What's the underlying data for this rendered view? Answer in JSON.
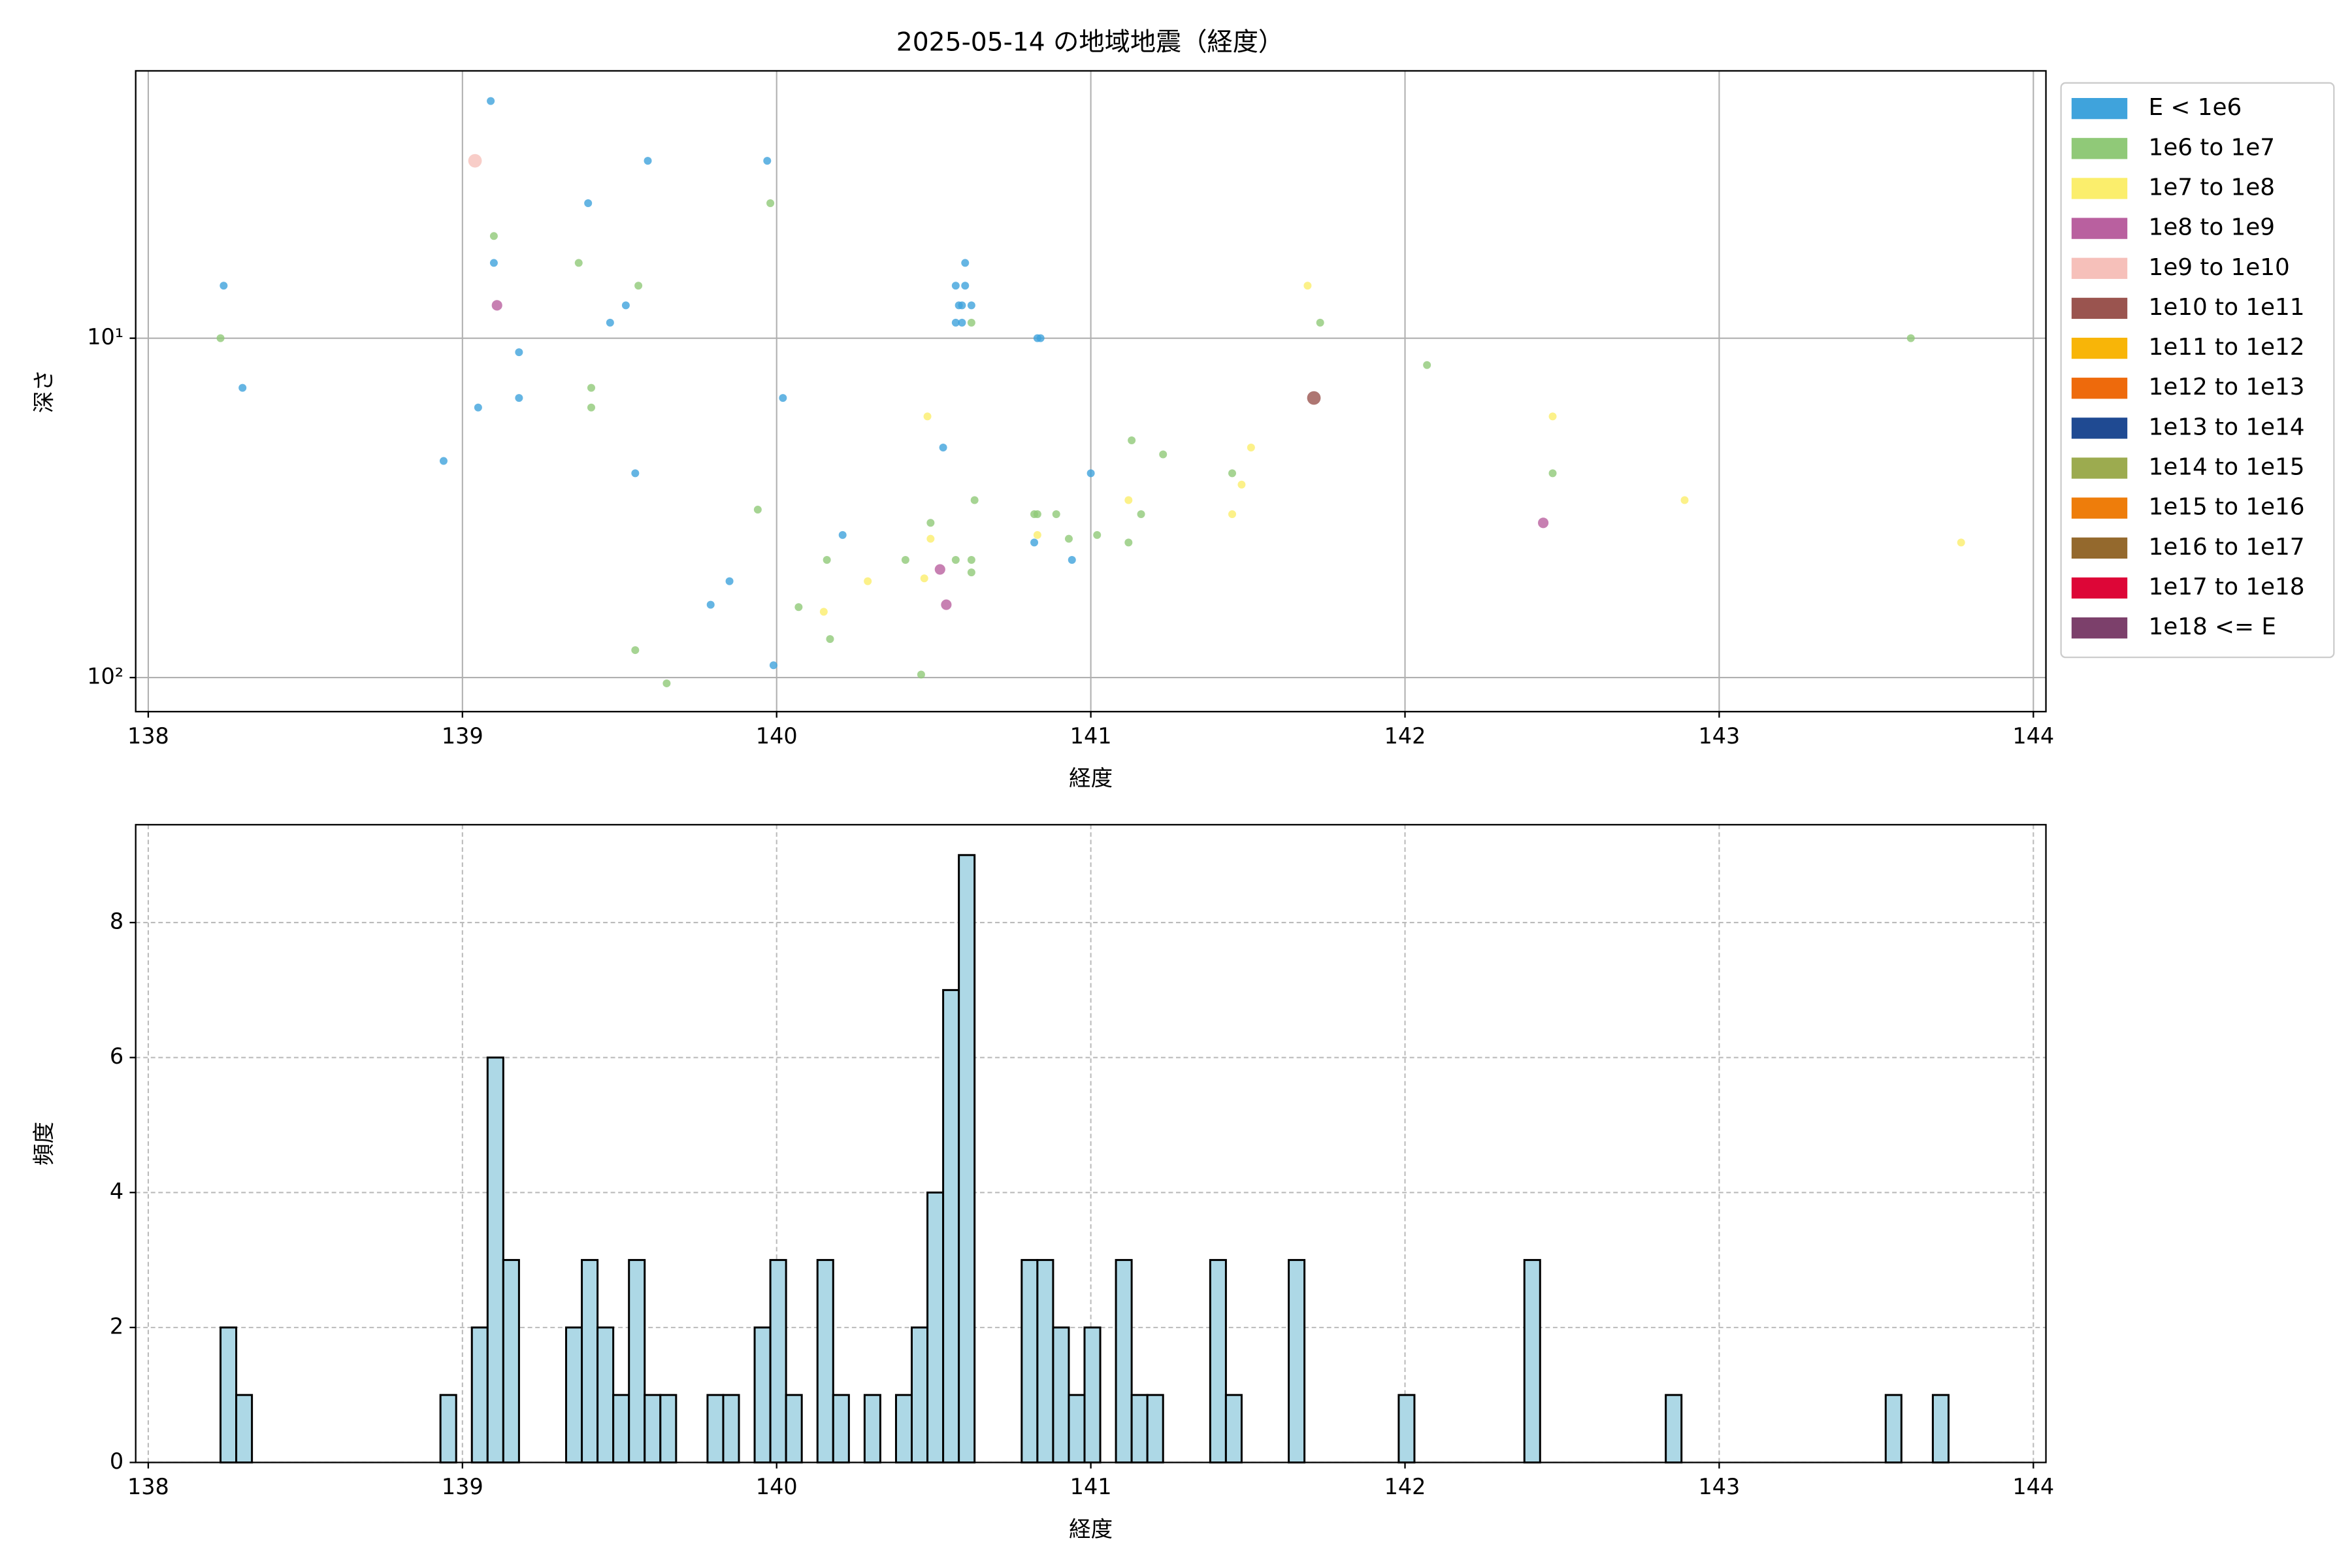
{
  "chart_data": [
    {
      "type": "scatter",
      "title": "2025-05-14 の地域地震（経度）",
      "x_label": "経度",
      "y_label": "深さ",
      "xlim": [
        137.96,
        144.04
      ],
      "xticks": [
        138,
        139,
        140,
        141,
        142,
        143,
        144
      ],
      "ylim": [
        1.63,
        126
      ],
      "yticks": [
        {
          "value": 10,
          "label": "10¹"
        },
        {
          "value": 100,
          "label": "10²"
        }
      ],
      "log_y": true,
      "invert_y": true,
      "grid": true,
      "grid_linestyle": "solid",
      "legend": "outside upper right",
      "series": [
        {
          "name": "E < 1e6",
          "color": "#3fa3dc",
          "x": [
            139.09,
            139.59,
            139.97,
            139.4,
            138.24,
            139.1,
            140.6,
            140.57,
            140.6,
            140.58,
            140.59,
            140.62,
            139.47,
            139.52,
            140.57,
            140.59,
            140.83,
            140.84,
            139.18,
            138.3,
            139.18,
            139.05,
            140.02,
            138.94,
            140.53,
            139.55,
            141.0,
            140.21,
            140.82,
            140.94,
            139.85,
            139.79,
            139.99
          ],
          "values": [
            2.0,
            3.0,
            3.0,
            4.0,
            7.0,
            6.0,
            6.0,
            7.0,
            7.0,
            8.0,
            8.0,
            8.0,
            9.0,
            8.0,
            9.0,
            9.0,
            10,
            10,
            11,
            14,
            15,
            16,
            15,
            23,
            21,
            25,
            25,
            38,
            40,
            45,
            52,
            61,
            92
          ]
        },
        {
          "name": "1e6 to 1e7",
          "color": "#90c978",
          "x": [
            139.1,
            139.98,
            139.37,
            139.56,
            138.23,
            140.62,
            141.73,
            142.07,
            143.61,
            139.41,
            139.41,
            141.13,
            141.23,
            141.45,
            142.47,
            140.63,
            139.94,
            140.82,
            140.83,
            140.89,
            141.16,
            140.49,
            141.02,
            140.93,
            141.12,
            140.41,
            140.57,
            140.62,
            140.16,
            140.62,
            140.07,
            140.17,
            139.55,
            140.46,
            139.65
          ],
          "values": [
            5.0,
            4.0,
            6.0,
            7.0,
            10,
            9.0,
            9.0,
            12,
            10,
            14,
            16,
            20,
            22,
            25,
            25,
            30,
            32,
            33,
            33,
            33,
            33,
            35,
            38,
            39,
            40,
            45,
            45,
            45,
            45,
            49,
            62,
            77,
            83,
            98,
            104
          ]
        },
        {
          "name": "1e7 to 1e8",
          "color": "#fbee6c",
          "x": [
            141.69,
            140.48,
            142.47,
            141.51,
            141.48,
            141.12,
            142.89,
            141.45,
            140.83,
            140.49,
            143.77,
            140.29,
            140.47,
            140.15
          ],
          "values": [
            7.0,
            17,
            17,
            21,
            27,
            30,
            30,
            33,
            38,
            39,
            40,
            52,
            51,
            64
          ]
        },
        {
          "name": "1e8 to 1e9",
          "color": "#b9609f",
          "x": [
            139.11,
            142.44,
            140.52,
            140.54
          ],
          "values": [
            8.0,
            35,
            48,
            61
          ]
        },
        {
          "name": "1e9 to 1e10",
          "color": "#f6c0ba",
          "x": [
            139.04
          ],
          "values": [
            3.0
          ]
        },
        {
          "name": "1e10 to 1e11",
          "color": "#9a544f",
          "x": [
            141.71
          ],
          "values": [
            15
          ]
        },
        {
          "name": "1e11 to 1e12",
          "color": "#f8b508",
          "x": [],
          "values": []
        },
        {
          "name": "1e12 to 1e13",
          "color": "#ee6a0c",
          "x": [],
          "values": []
        },
        {
          "name": "1e13 to 1e14",
          "color": "#1f4a92",
          "x": [],
          "values": []
        },
        {
          "name": "1e14 to 1e15",
          "color": "#9cab4f",
          "x": [],
          "values": []
        },
        {
          "name": "1e15 to 1e16",
          "color": "#ee7d0b",
          "x": [],
          "values": []
        },
        {
          "name": "1e16 to 1e17",
          "color": "#94692d",
          "x": [],
          "values": []
        },
        {
          "name": "1e17 to 1e18",
          "color": "#dd0637",
          "x": [],
          "values": []
        },
        {
          "name": "1e18 <= E",
          "color": "#7c406b",
          "x": [],
          "values": []
        }
      ]
    },
    {
      "type": "histogram",
      "x_label": "経度",
      "y_label": "頻度",
      "color": "#add8e6",
      "edgecolor": "#000000",
      "xlim": [
        137.96,
        144.04
      ],
      "xticks": [
        138,
        139,
        140,
        141,
        142,
        143,
        144
      ],
      "ylim": [
        0,
        9.45
      ],
      "yticks": [
        0,
        2,
        4,
        6,
        8
      ],
      "grid": true,
      "grid_linestyle": "dashed",
      "bins": [
        138.23,
        138.28,
        138.33,
        138.38,
        138.43,
        138.48,
        138.53,
        138.58,
        138.63,
        138.68,
        138.73,
        138.78,
        138.83,
        138.88,
        138.93,
        138.98,
        139.03,
        139.08,
        139.13,
        139.18,
        139.23,
        139.28,
        139.33,
        139.38,
        139.43,
        139.48,
        139.53,
        139.58,
        139.63,
        139.68,
        139.73,
        139.78,
        139.83,
        139.88,
        139.93,
        139.98,
        140.03,
        140.08,
        140.13,
        140.18,
        140.23,
        140.28,
        140.33,
        140.38,
        140.43,
        140.48,
        140.53,
        140.58,
        140.63,
        140.68,
        140.73,
        140.78,
        140.83,
        140.88,
        140.93,
        140.98,
        141.03,
        141.08,
        141.13,
        141.18,
        141.23,
        141.28,
        141.33,
        141.38,
        141.43,
        141.48,
        141.53,
        141.58,
        141.63,
        141.68,
        141.73,
        141.78,
        141.83,
        141.88,
        141.93,
        141.98,
        142.03,
        142.08,
        142.13,
        142.18,
        142.23,
        142.28,
        142.33,
        142.38,
        142.43,
        142.48,
        142.53,
        142.58,
        142.63,
        142.68,
        142.73,
        142.78,
        142.83,
        142.88,
        142.93,
        142.98,
        143.03,
        143.08,
        143.13,
        143.18,
        143.23,
        143.28,
        143.33,
        143.38,
        143.43,
        143.48,
        143.53,
        143.58,
        143.63,
        143.68,
        143.73
      ],
      "values": [
        2,
        1,
        0,
        0,
        0,
        0,
        0,
        0,
        0,
        0,
        0,
        0,
        0,
        0,
        1,
        0,
        2,
        6,
        3,
        0,
        0,
        0,
        2,
        3,
        2,
        1,
        3,
        1,
        1,
        0,
        0,
        1,
        1,
        0,
        2,
        3,
        1,
        0,
        3,
        1,
        0,
        1,
        0,
        1,
        2,
        4,
        7,
        9,
        0,
        0,
        0,
        3,
        3,
        2,
        1,
        2,
        0,
        3,
        1,
        1,
        0,
        0,
        0,
        3,
        1,
        0,
        0,
        0,
        3,
        0,
        0,
        0,
        0,
        0,
        0,
        1,
        0,
        0,
        0,
        0,
        0,
        0,
        0,
        3,
        0,
        0,
        0,
        0,
        0,
        0,
        0,
        0,
        1,
        0,
        0,
        0,
        0,
        0,
        0,
        0,
        0,
        0,
        0,
        0,
        0,
        0,
        1,
        0,
        0,
        1
      ]
    }
  ]
}
